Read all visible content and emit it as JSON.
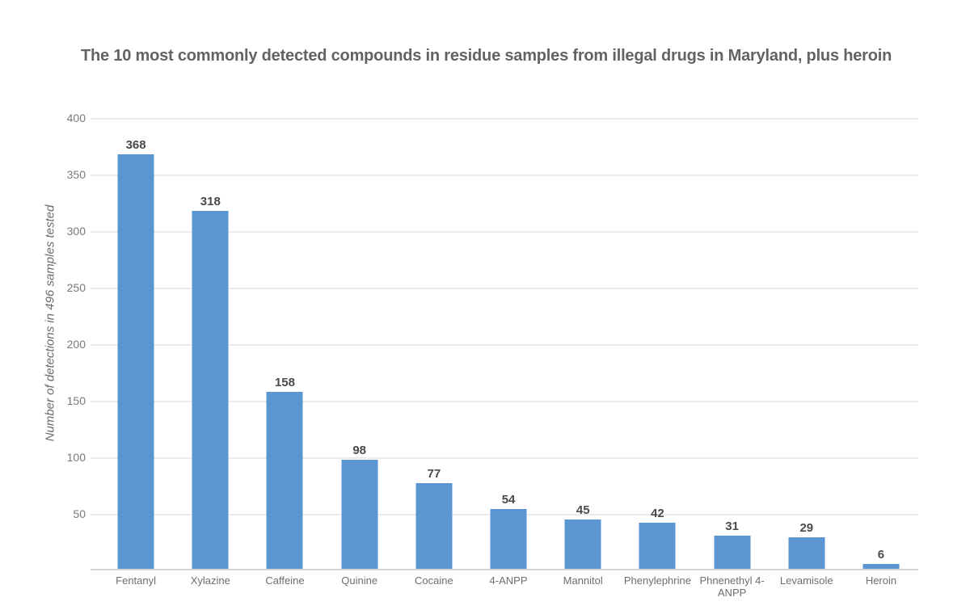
{
  "title": "The 10 most commonly detected compounds in residue samples from illegal drugs in Maryland, plus heroin",
  "chart_data": {
    "type": "bar",
    "title": "The 10 most commonly detected compounds in residue samples from illegal drugs in Maryland, plus heroin",
    "categories": [
      "Fentanyl",
      "Xylazine",
      "Caffeine",
      "Quinine",
      "Cocaine",
      "4-ANPP",
      "Mannitol",
      "Phenylephrine",
      "Phnenethyl 4-ANPP",
      "Levamisole",
      "Heroin"
    ],
    "values": [
      368,
      318,
      158,
      98,
      77,
      54,
      45,
      42,
      31,
      29,
      6
    ],
    "data_labels": [
      "368",
      "318",
      "158",
      "98",
      "77",
      "54",
      "45",
      "42",
      "31",
      "29",
      "6"
    ],
    "xlabel": "",
    "ylabel": "Number of detections in 496 samples tested",
    "ylim": [
      0,
      400
    ],
    "yticks": [
      50,
      100,
      150,
      200,
      250,
      300,
      350,
      400
    ],
    "grid": true,
    "legend": false,
    "bar_color": "#5b96d2"
  },
  "colors": {
    "bar": "#5b96d2",
    "gridline": "#ebebeb",
    "baseline": "#d4d4d4",
    "title_text": "#636363",
    "value_label_text": "#4a4a4a",
    "tick_label_text": "#7a7a7a",
    "category_label_text": "#6e6e6e",
    "background": "#ffffff"
  }
}
